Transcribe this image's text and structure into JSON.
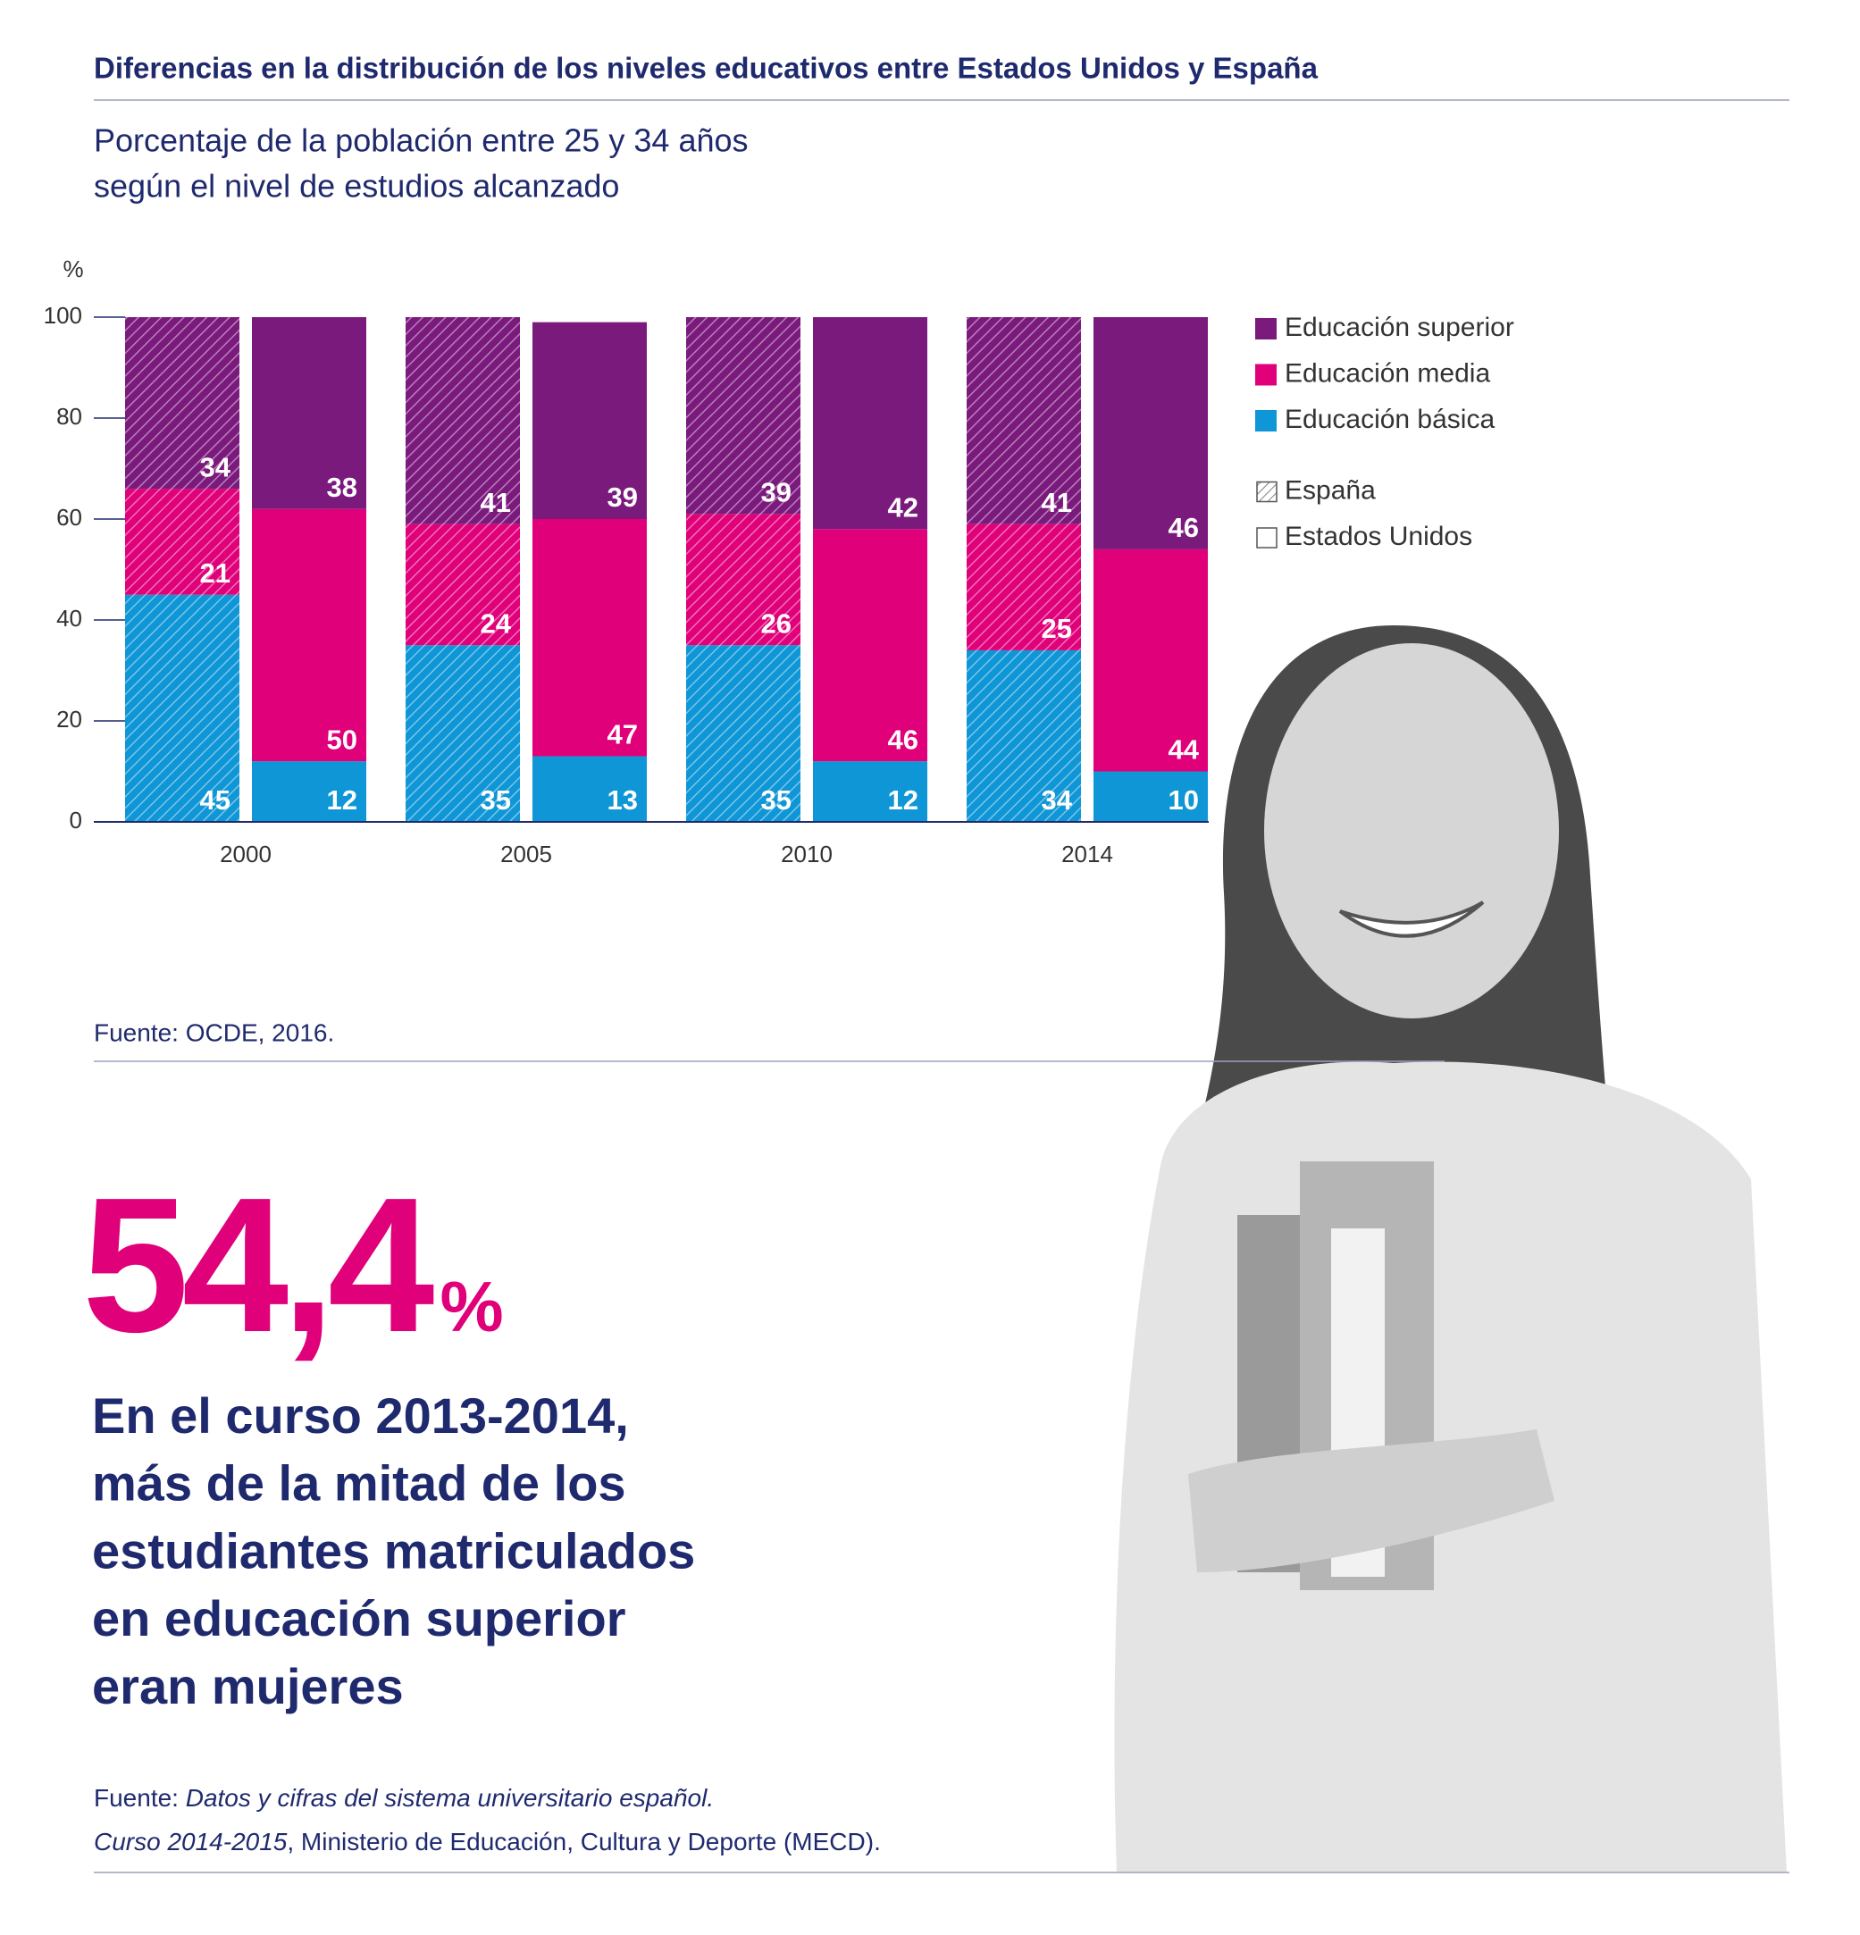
{
  "chart_data": {
    "type": "bar",
    "stacked": true,
    "title": "Diferencias en la distribución de los niveles educativos entre Estados Unidos y España",
    "subtitle_lines": [
      "Porcentaje de la población entre 25 y 34 años",
      "según el nivel de estudios alcanzado"
    ],
    "y_unit": "%",
    "categories": [
      "2000",
      "2005",
      "2010",
      "2014"
    ],
    "groups": [
      {
        "name": "España",
        "hatch": true
      },
      {
        "name": "Estados Unidos",
        "hatch": false
      }
    ],
    "series": [
      {
        "name": "Educación básica",
        "color": "#0e96d6",
        "values": [
          [
            45,
            35,
            35,
            34
          ],
          [
            12,
            13,
            12,
            10
          ]
        ]
      },
      {
        "name": "Educación media",
        "color": "#e0007a",
        "values": [
          [
            21,
            24,
            26,
            25
          ],
          [
            50,
            47,
            46,
            44
          ]
        ]
      },
      {
        "name": "Educación superior",
        "color": "#7b1a7d",
        "values": [
          [
            34,
            41,
            39,
            41
          ],
          [
            38,
            39,
            42,
            46
          ]
        ]
      }
    ],
    "ylim": [
      0,
      100
    ],
    "yticks": [
      0,
      20,
      40,
      60,
      80,
      100
    ],
    "grid": false,
    "source": "Fuente: OCDE, 2016."
  },
  "highlight": {
    "stat_value": "54,4",
    "stat_unit": "%",
    "statement_lines": [
      "En el curso 2013-2014,",
      "más de la mitad de los",
      "estudiantes matriculados",
      "en educación superior",
      "eran mujeres"
    ]
  },
  "footer": {
    "line1": {
      "prefix": "Fuente: ",
      "italic": "Datos y cifras del sistema universitario español."
    },
    "line2": {
      "italic": "Curso 2014-2015",
      "rest": ", Ministerio de Educación, Cultura y Deporte (MECD)."
    }
  }
}
